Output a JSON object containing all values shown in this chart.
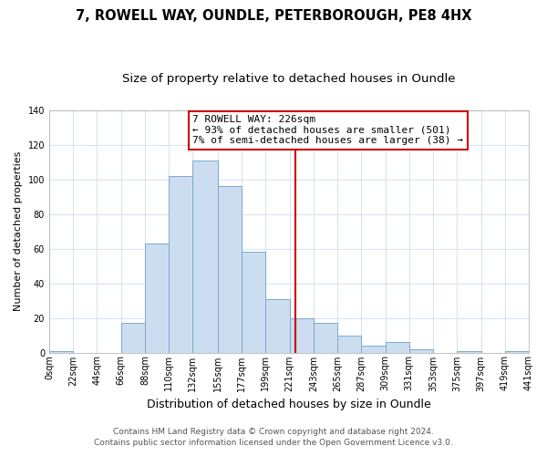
{
  "title": "7, ROWELL WAY, OUNDLE, PETERBOROUGH, PE8 4HX",
  "subtitle": "Size of property relative to detached houses in Oundle",
  "xlabel": "Distribution of detached houses by size in Oundle",
  "ylabel": "Number of detached properties",
  "bar_color": "#ccddf0",
  "bar_edge_color": "#7aaacf",
  "plot_bg_color": "#ffffff",
  "fig_bg_color": "#ffffff",
  "grid_color": "#d8e4f0",
  "bin_edges": [
    0,
    22,
    44,
    66,
    88,
    110,
    132,
    155,
    177,
    199,
    221,
    243,
    265,
    287,
    309,
    331,
    353,
    375,
    397,
    419,
    441
  ],
  "bin_labels": [
    "0sqm",
    "22sqm",
    "44sqm",
    "66sqm",
    "88sqm",
    "110sqm",
    "132sqm",
    "155sqm",
    "177sqm",
    "199sqm",
    "221sqm",
    "243sqm",
    "265sqm",
    "287sqm",
    "309sqm",
    "331sqm",
    "353sqm",
    "375sqm",
    "397sqm",
    "419sqm",
    "441sqm"
  ],
  "counts": [
    1,
    0,
    0,
    17,
    63,
    102,
    111,
    96,
    58,
    31,
    20,
    17,
    10,
    4,
    6,
    2,
    0,
    1,
    0,
    1
  ],
  "vline_x": 226,
  "vline_color": "#cc0000",
  "annotation_title": "7 ROWELL WAY: 226sqm",
  "annotation_line1": "← 93% of detached houses are smaller (501)",
  "annotation_line2": "7% of semi-detached houses are larger (38) →",
  "annotation_box_color": "#ffffff",
  "annotation_box_edge": "#cc0000",
  "footer1": "Contains HM Land Registry data © Crown copyright and database right 2024.",
  "footer2": "Contains public sector information licensed under the Open Government Licence v3.0.",
  "ylim": [
    0,
    140
  ],
  "yticks": [
    0,
    20,
    40,
    60,
    80,
    100,
    120,
    140
  ],
  "title_fontsize": 10.5,
  "subtitle_fontsize": 9.5,
  "xlabel_fontsize": 9,
  "ylabel_fontsize": 8,
  "tick_fontsize": 7,
  "annot_fontsize": 8,
  "footer_fontsize": 6.5
}
